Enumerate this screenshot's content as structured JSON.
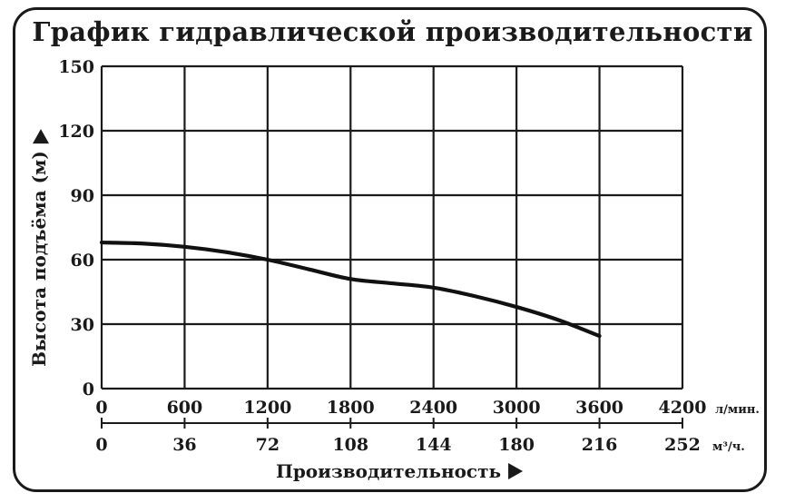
{
  "chart_data": {
    "type": "line",
    "title": "График гидравлической производительности",
    "ylabel": "Высота подъёма (м)",
    "xlabel": "Производительность",
    "ylim": [
      0,
      150
    ],
    "y_ticks": [
      0,
      30,
      60,
      90,
      120,
      150
    ],
    "xlim": [
      0,
      4200
    ],
    "x_ticks": [
      0,
      600,
      1200,
      1800,
      2400,
      3000,
      3600,
      4200
    ],
    "x_unit": "л/мин.",
    "x2_ticks": [
      "0",
      "36",
      "72",
      "108",
      "144",
      "180",
      "216",
      "252"
    ],
    "x2_unit": "м³/ч.",
    "grid": true,
    "series": [
      {
        "x": [
          0,
          300,
          600,
          900,
          1200,
          1500,
          1800,
          2100,
          2400,
          2700,
          3000,
          3300,
          3600
        ],
        "y": [
          68,
          67.5,
          66,
          63.5,
          60,
          55.5,
          51,
          49,
          47,
          43,
          38,
          32,
          24.5
        ]
      }
    ],
    "colors": {
      "line": "#111111",
      "grid": "#1a1a1a"
    }
  }
}
